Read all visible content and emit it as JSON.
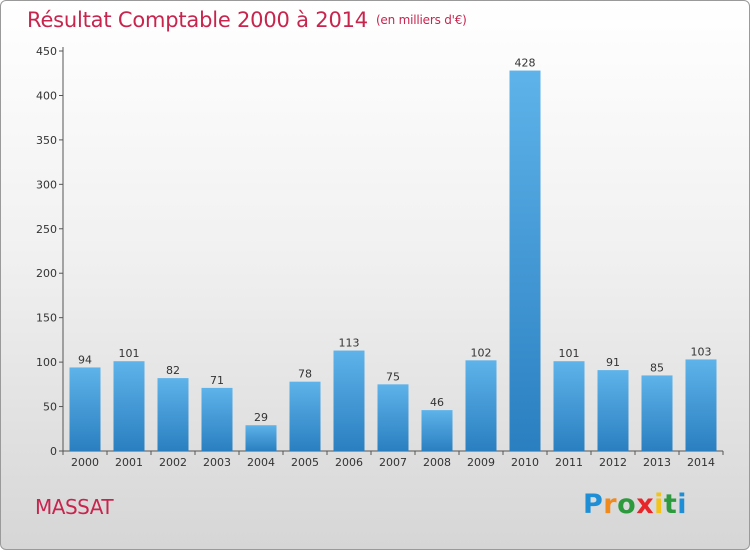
{
  "title": "Résultat Comptable 2000 à 2014",
  "unit_note": "(en milliers d'€)",
  "commune": "MASSAT",
  "logo": {
    "text": "Proxiti",
    "letters": [
      "P",
      "r",
      "o",
      "x",
      "i",
      "t",
      "i"
    ],
    "colors": [
      "#1e8fd6",
      "#f08a1c",
      "#2e9a3e",
      "#e8262a",
      "#f2c318",
      "#2e9a3e",
      "#1e8fd6"
    ]
  },
  "colors": {
    "bar_top": "#5eb3ea",
    "bar_bottom": "#2a7fc0",
    "title": "#c8254e"
  },
  "chart_data": {
    "type": "bar",
    "title": "Résultat Comptable 2000 à 2014",
    "categories": [
      "2000",
      "2001",
      "2002",
      "2003",
      "2004",
      "2005",
      "2006",
      "2007",
      "2008",
      "2009",
      "2010",
      "2011",
      "2012",
      "2013",
      "2014"
    ],
    "values": [
      94,
      101,
      82,
      71,
      29,
      78,
      113,
      75,
      46,
      102,
      428,
      101,
      91,
      85,
      103
    ],
    "yticks": [
      0,
      50,
      100,
      150,
      200,
      250,
      300,
      350,
      400,
      450
    ],
    "ylim": [
      0,
      450
    ],
    "xlabel": "",
    "ylabel": "",
    "grid": false,
    "legend": "none"
  }
}
